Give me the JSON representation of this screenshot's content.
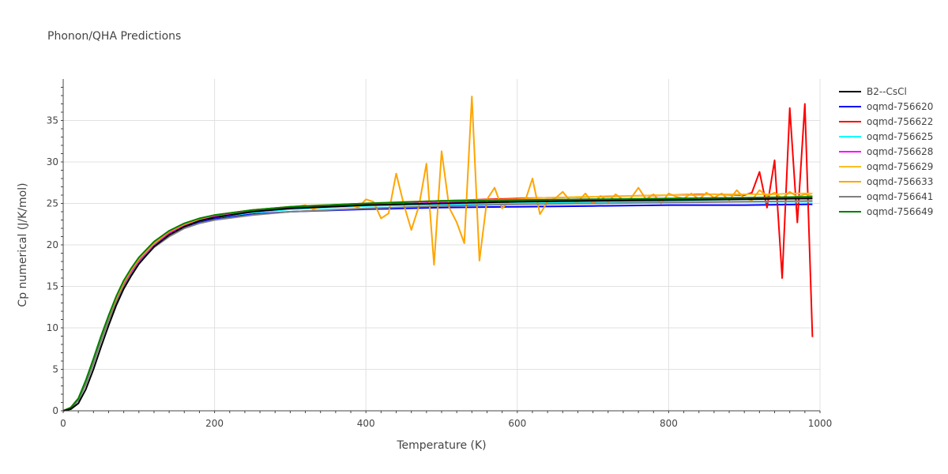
{
  "chart_data": {
    "type": "line",
    "title": "Phonon/QHA Predictions",
    "xlabel": "Temperature (K)",
    "ylabel": "Cp numerical (J/K/mol)",
    "xlim": [
      0,
      1000
    ],
    "ylim": [
      0,
      40
    ],
    "xticks": [
      0,
      200,
      400,
      600,
      800,
      1000
    ],
    "yticks": [
      0,
      5,
      10,
      15,
      20,
      25,
      30,
      35
    ],
    "grid": true,
    "legend_position": "top-right",
    "series": [
      {
        "name": "B2--CsCl",
        "color": "#000000",
        "x": [
          0,
          10,
          20,
          30,
          40,
          50,
          60,
          70,
          80,
          90,
          100,
          120,
          140,
          160,
          180,
          200,
          250,
          300,
          400,
          500,
          600,
          700,
          800,
          900,
          990
        ],
        "y": [
          0,
          0.2,
          0.9,
          2.6,
          5.0,
          7.7,
          10.3,
          12.7,
          14.7,
          16.3,
          17.7,
          19.8,
          21.2,
          22.2,
          22.9,
          23.3,
          24.0,
          24.4,
          24.8,
          25.0,
          25.2,
          25.3,
          25.4,
          25.5,
          25.6
        ]
      },
      {
        "name": "oqmd-756620",
        "color": "#0000ff",
        "x": [
          0,
          10,
          20,
          30,
          40,
          50,
          60,
          70,
          80,
          90,
          100,
          120,
          140,
          160,
          180,
          200,
          250,
          300,
          400,
          500,
          600,
          700,
          800,
          900,
          990
        ],
        "y": [
          0,
          0.3,
          1.3,
          3.3,
          5.9,
          8.6,
          11.1,
          13.4,
          15.2,
          16.7,
          18.0,
          19.9,
          21.2,
          22.1,
          22.7,
          23.1,
          23.7,
          24.0,
          24.3,
          24.5,
          24.6,
          24.7,
          24.8,
          24.8,
          24.9
        ]
      },
      {
        "name": "oqmd-756622",
        "color": "#ff0000",
        "x": [
          0,
          10,
          20,
          30,
          40,
          50,
          60,
          70,
          80,
          90,
          100,
          120,
          140,
          160,
          180,
          200,
          250,
          300,
          400,
          500,
          600,
          700,
          800,
          860,
          900,
          910,
          920,
          930,
          940,
          950,
          960,
          970,
          980,
          990
        ],
        "y": [
          0,
          0.3,
          1.4,
          3.4,
          6.0,
          8.7,
          11.2,
          13.5,
          15.4,
          16.9,
          18.2,
          20.2,
          21.6,
          22.5,
          23.1,
          23.6,
          24.2,
          24.6,
          25.0,
          25.3,
          25.6,
          25.8,
          26.0,
          26.1,
          26.0,
          26.3,
          28.8,
          24.5,
          30.2,
          16.0,
          36.5,
          22.7,
          37.0,
          8.9
        ]
      },
      {
        "name": "oqmd-756625",
        "color": "#00ffff",
        "x": [
          0,
          10,
          20,
          30,
          40,
          50,
          60,
          70,
          80,
          90,
          100,
          120,
          140,
          160,
          180,
          200,
          250,
          300,
          400,
          500,
          600,
          700,
          800,
          900,
          990
        ],
        "y": [
          0,
          0.3,
          1.3,
          3.3,
          5.9,
          8.6,
          11.1,
          13.4,
          15.3,
          16.8,
          18.1,
          20.0,
          21.4,
          22.3,
          22.9,
          23.3,
          23.9,
          24.3,
          24.7,
          24.9,
          25.0,
          25.1,
          25.2,
          25.2,
          25.2
        ]
      },
      {
        "name": "oqmd-756628",
        "color": "#ff00ff",
        "x": [
          0,
          10,
          20,
          30,
          40,
          50,
          60,
          70,
          80,
          90,
          100,
          120,
          140,
          160,
          180,
          200,
          250,
          300,
          400,
          500,
          600,
          700,
          800,
          900,
          990
        ],
        "y": [
          0,
          0.3,
          1.3,
          3.4,
          6.0,
          8.7,
          11.2,
          13.5,
          15.3,
          16.8,
          18.1,
          20.1,
          21.4,
          22.4,
          23.0,
          23.4,
          24.0,
          24.4,
          24.8,
          25.1,
          25.3,
          25.4,
          25.5,
          25.6,
          25.6
        ]
      },
      {
        "name": "oqmd-756629",
        "color": "#fbbf24",
        "x": [
          0,
          10,
          20,
          30,
          40,
          50,
          60,
          70,
          80,
          90,
          100,
          120,
          140,
          160,
          180,
          200,
          250,
          300,
          320,
          340,
          360,
          380,
          400,
          450,
          500,
          550,
          600,
          620,
          640,
          660,
          680,
          700,
          720,
          740,
          760,
          780,
          800,
          820,
          840,
          860,
          880,
          900,
          920,
          940,
          960,
          980,
          990
        ],
        "y": [
          0,
          0.4,
          1.5,
          3.6,
          6.2,
          8.9,
          11.4,
          13.6,
          15.5,
          17.0,
          18.3,
          20.2,
          21.6,
          22.5,
          23.1,
          23.6,
          24.2,
          24.6,
          24.7,
          24.8,
          24.8,
          24.9,
          25.0,
          25.2,
          25.3,
          25.4,
          25.5,
          25.6,
          25.7,
          25.7,
          25.8,
          25.8,
          25.9,
          25.9,
          25.9,
          26.0,
          26.0,
          26.0,
          26.0,
          26.1,
          26.1,
          26.1,
          26.1,
          26.1,
          26.2,
          26.2,
          26.2
        ]
      },
      {
        "name": "oqmd-756633",
        "color": "#ffa500",
        "x": [
          0,
          10,
          20,
          30,
          40,
          50,
          60,
          70,
          80,
          90,
          100,
          120,
          140,
          160,
          180,
          200,
          250,
          300,
          320,
          330,
          340,
          350,
          360,
          380,
          390,
          400,
          410,
          420,
          430,
          440,
          450,
          460,
          470,
          480,
          490,
          500,
          510,
          520,
          530,
          540,
          550,
          560,
          570,
          580,
          590,
          600,
          610,
          620,
          630,
          640,
          650,
          660,
          670,
          680,
          690,
          700,
          710,
          720,
          730,
          740,
          750,
          760,
          770,
          780,
          790,
          800,
          810,
          820,
          830,
          840,
          850,
          860,
          870,
          880,
          890,
          900,
          910,
          920,
          930,
          940,
          950,
          960,
          970,
          980,
          990
        ],
        "y": [
          0,
          0.4,
          1.5,
          3.6,
          6.2,
          8.9,
          11.4,
          13.6,
          15.5,
          17.0,
          18.3,
          20.2,
          21.6,
          22.5,
          23.1,
          23.6,
          24.2,
          24.5,
          24.8,
          24.3,
          24.6,
          24.7,
          24.8,
          24.8,
          24.5,
          25.5,
          25.2,
          23.2,
          23.8,
          28.6,
          24.9,
          21.8,
          24.7,
          29.8,
          17.6,
          31.3,
          24.5,
          22.7,
          20.2,
          37.9,
          18.1,
          25.5,
          26.9,
          24.4,
          25.3,
          25.4,
          25.2,
          28.0,
          23.7,
          25.2,
          25.6,
          26.4,
          25.3,
          25.2,
          26.2,
          25.0,
          25.9,
          25.2,
          26.1,
          25.4,
          25.6,
          26.9,
          25.5,
          26.1,
          25.0,
          26.2,
          25.8,
          25.6,
          26.2,
          25.5,
          26.3,
          25.7,
          26.2,
          25.4,
          26.6,
          25.6,
          25.4,
          26.6,
          25.9,
          26.3,
          25.6,
          26.4,
          25.8,
          26.1,
          25.9
        ]
      },
      {
        "name": "oqmd-756641",
        "color": "#808080",
        "x": [
          0,
          10,
          20,
          30,
          40,
          50,
          60,
          70,
          80,
          90,
          100,
          120,
          140,
          160,
          180,
          200,
          250,
          300,
          400,
          500,
          600,
          700,
          800,
          900,
          990
        ],
        "y": [
          0,
          0.3,
          1.3,
          3.2,
          5.7,
          8.4,
          10.9,
          13.1,
          15.0,
          16.5,
          17.8,
          19.7,
          21.0,
          22.0,
          22.6,
          23.0,
          23.6,
          24.0,
          24.4,
          24.7,
          24.9,
          25.0,
          25.1,
          25.2,
          25.3
        ]
      },
      {
        "name": "oqmd-756649",
        "color": "#008000",
        "x": [
          0,
          10,
          20,
          30,
          40,
          50,
          60,
          70,
          80,
          90,
          100,
          120,
          140,
          160,
          180,
          200,
          250,
          300,
          400,
          500,
          600,
          700,
          800,
          900,
          990
        ],
        "y": [
          0,
          0.4,
          1.5,
          3.7,
          6.3,
          9.0,
          11.5,
          13.8,
          15.7,
          17.2,
          18.5,
          20.4,
          21.7,
          22.6,
          23.2,
          23.6,
          24.2,
          24.6,
          25.0,
          25.3,
          25.4,
          25.5,
          25.6,
          25.7,
          25.8
        ]
      }
    ]
  }
}
